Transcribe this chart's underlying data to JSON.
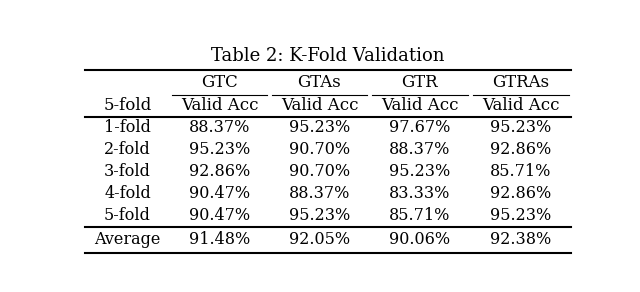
{
  "title": "Table 2: K-Fold Validation",
  "col_groups": [
    "GTC",
    "GTAs",
    "GTR",
    "GTRAs"
  ],
  "sub_header_label": "5-fold",
  "sub_header_col": "Valid Acc",
  "row_labels": [
    "1-fold",
    "2-fold",
    "3-fold",
    "4-fold",
    "5-fold"
  ],
  "data": [
    [
      "88.37%",
      "95.23%",
      "97.67%",
      "95.23%"
    ],
    [
      "95.23%",
      "90.70%",
      "88.37%",
      "92.86%"
    ],
    [
      "92.86%",
      "90.70%",
      "95.23%",
      "85.71%"
    ],
    [
      "90.47%",
      "88.37%",
      "83.33%",
      "92.86%"
    ],
    [
      "90.47%",
      "95.23%",
      "85.71%",
      "95.23%"
    ]
  ],
  "avg_label": "Average",
  "avg_data": [
    "91.48%",
    "92.05%",
    "90.06%",
    "92.38%"
  ],
  "bg_color": "#ffffff",
  "text_color": "#000000",
  "title_fontsize": 13,
  "header_fontsize": 12,
  "cell_fontsize": 11.5
}
